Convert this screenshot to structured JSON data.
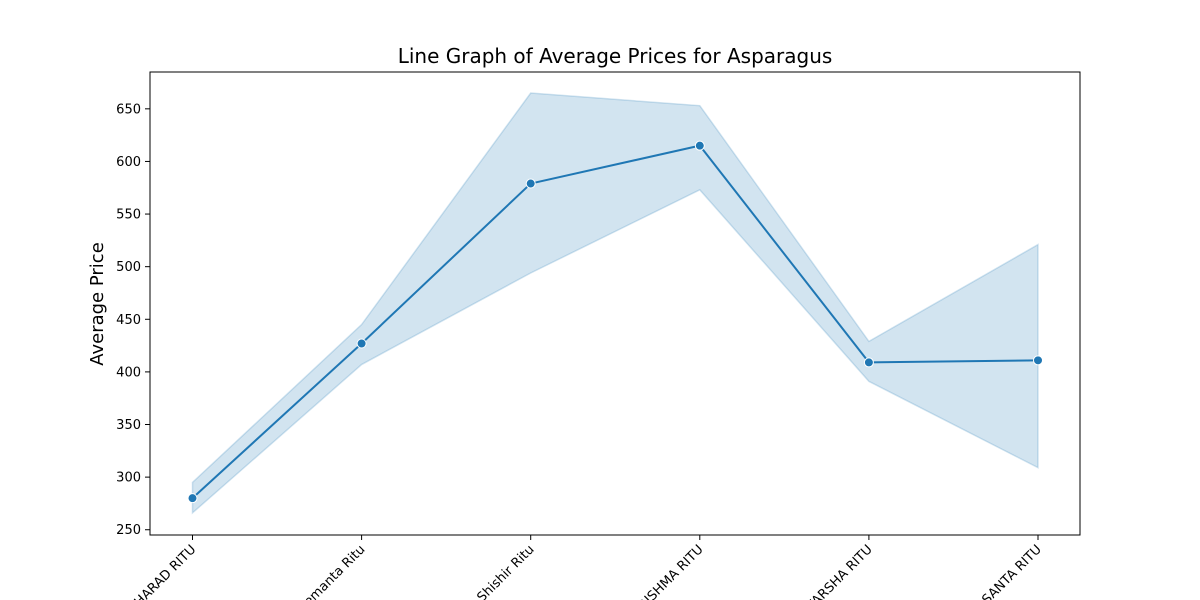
{
  "chart_data": {
    "type": "line",
    "title": "Line Graph of Average Prices for Asparagus",
    "xlabel": "",
    "ylabel": "Average Price",
    "categories": [
      "SHARAD RITU",
      "Hemanta Ritu",
      "Shishir Ritu",
      "GRISHMA RITU",
      "VARSHA RITU",
      "VASANTA RITU"
    ],
    "series": [
      {
        "values": [
          280,
          427,
          579,
          615,
          409,
          411
        ],
        "ci_lower": [
          266,
          407,
          494,
          573,
          391,
          309
        ],
        "ci_upper": [
          295,
          445,
          665,
          653,
          429,
          521
        ]
      }
    ],
    "ylim": [
      245,
      685
    ],
    "yticks": [
      250,
      300,
      350,
      400,
      450,
      500,
      550,
      600,
      650
    ],
    "grid": false,
    "legend": "none",
    "colors": {
      "line": "#1f77b4",
      "band": "#1f77b4"
    }
  }
}
